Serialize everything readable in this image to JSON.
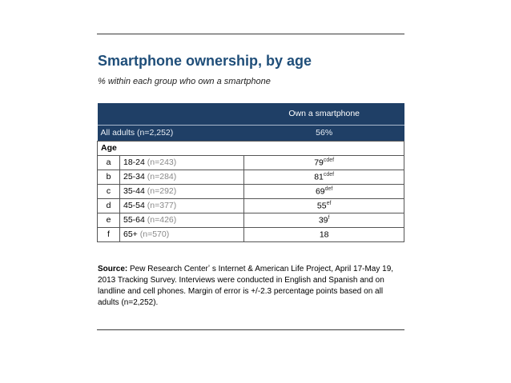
{
  "title": "Smartphone ownership, by age",
  "subtitle": "% within each group who own a smartphone",
  "table": {
    "column_header": "Own a smartphone",
    "all_adults": {
      "label": "All adults (n=2,252)",
      "value": "56%"
    },
    "section_label": "Age",
    "rows": [
      {
        "letter": "a",
        "range": "18-24",
        "n": "(n=243)",
        "value": "79",
        "sig": "cdef"
      },
      {
        "letter": "b",
        "range": "25-34",
        "n": "(n=284)",
        "value": "81",
        "sig": "cdef"
      },
      {
        "letter": "c",
        "range": "35-44",
        "n": "(n=292)",
        "value": "69",
        "sig": "def"
      },
      {
        "letter": "d",
        "range": "45-54",
        "n": "(n=377)",
        "value": "55",
        "sig": "ef"
      },
      {
        "letter": "e",
        "range": "55-64",
        "n": "(n=426)",
        "value": "39",
        "sig": "f"
      },
      {
        "letter": "f",
        "range": "65+",
        "n": "(n=570)",
        "value": "18",
        "sig": ""
      }
    ]
  },
  "source": {
    "label": "Source:",
    "text": " Pew Research Centerʼ s Internet & American Life Project, April 17-May 19, 2013 Tracking Survey. Interviews were conducted in English and Spanish and on landline and cell phones.  Margin of error is +/-2.3 percentage points based on all adults (n=2,252)."
  },
  "colors": {
    "title": "#1f4e79",
    "header_bg": "#1f3f66"
  }
}
